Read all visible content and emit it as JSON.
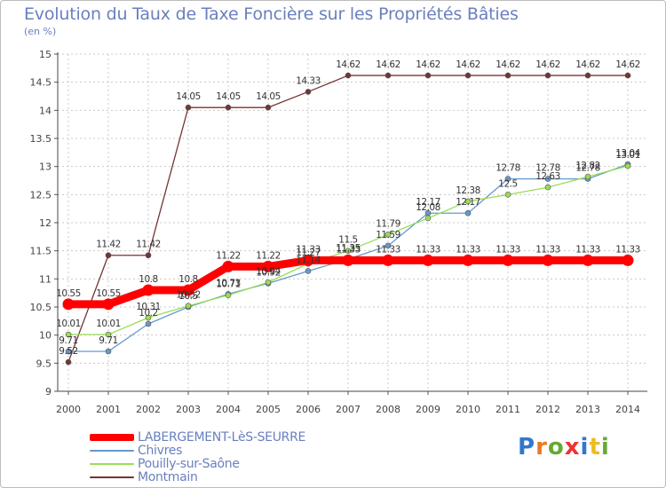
{
  "chart_data": {
    "type": "line",
    "title": "Evolution du Taux de Taxe Foncière sur les Propriétés Bâties",
    "ylabel": "(en %)",
    "xlabel": "",
    "ylim": [
      9,
      15
    ],
    "yticks": [
      "9",
      "9.5",
      "10",
      "10.5",
      "11",
      "11.5",
      "12",
      "12.5",
      "13",
      "13.5",
      "14",
      "14.5",
      "15"
    ],
    "categories": [
      "2000",
      "2001",
      "2002",
      "2003",
      "2004",
      "2005",
      "2006",
      "2007",
      "2008",
      "2009",
      "2010",
      "2011",
      "2012",
      "2013",
      "2014"
    ],
    "grid": true,
    "series": [
      {
        "name": "LABERGEMENT-LèS-SEURRE",
        "color": "#ff0000",
        "values": [
          10.55,
          10.55,
          10.8,
          10.8,
          11.22,
          11.22,
          11.33,
          11.33,
          11.33,
          11.33,
          11.33,
          11.33,
          11.33,
          11.33,
          11.33
        ],
        "labels": [
          "10.55",
          "10.55",
          "10.8",
          "10.8",
          "11.22",
          "11.22",
          "11.33",
          "11.33",
          "11.33",
          "11.33",
          "11.33",
          "11.33",
          "11.33",
          "11.33",
          "11.33"
        ]
      },
      {
        "name": "Chivres",
        "color": "#6699cc",
        "values": [
          9.71,
          9.71,
          10.2,
          10.5,
          10.73,
          10.92,
          11.14,
          11.35,
          11.59,
          12.17,
          12.17,
          12.78,
          12.78,
          12.78,
          13.04
        ],
        "labels": [
          "9.71",
          "9.71",
          "10.2",
          "10.5",
          "10.73",
          "10.92",
          "11.14",
          "11.35",
          "11.59",
          "12.17",
          "12.17",
          "12.78",
          "12.78",
          "12.78",
          "13.04"
        ]
      },
      {
        "name": "Pouilly-sur-Saône",
        "color": "#99dd55",
        "values": [
          10.01,
          10.01,
          10.31,
          10.52,
          10.71,
          10.94,
          11.27,
          11.5,
          11.79,
          12.08,
          12.38,
          12.5,
          12.63,
          12.82,
          13.01
        ],
        "labels": [
          "10.01",
          "10.01",
          "10.31",
          "10.52",
          "10.71",
          "10.94",
          "11.27",
          "11.5",
          "11.79",
          "12.08",
          "12.38",
          "12.5",
          "12.63",
          "12.82",
          "13.01"
        ]
      },
      {
        "name": "Montmain",
        "color": "#773333",
        "values": [
          9.52,
          11.42,
          11.42,
          14.05,
          14.05,
          14.05,
          14.33,
          14.62,
          14.62,
          14.62,
          14.62,
          14.62,
          14.62,
          14.62,
          14.62
        ],
        "labels": [
          "9.52",
          "11.42",
          "11.42",
          "14.05",
          "14.05",
          "14.05",
          "14.33",
          "14.62",
          "14.62",
          "14.62",
          "14.62",
          "14.62",
          "14.62",
          "14.62",
          "14.62"
        ]
      }
    ]
  },
  "logo": {
    "letters": [
      "P",
      "r",
      "o",
      "x",
      "i",
      "t",
      "i"
    ],
    "colors": [
      "#3377cc",
      "#ee7722",
      "#66aa33",
      "#ee3333",
      "#3377cc",
      "#eebb22",
      "#66aa33"
    ]
  }
}
